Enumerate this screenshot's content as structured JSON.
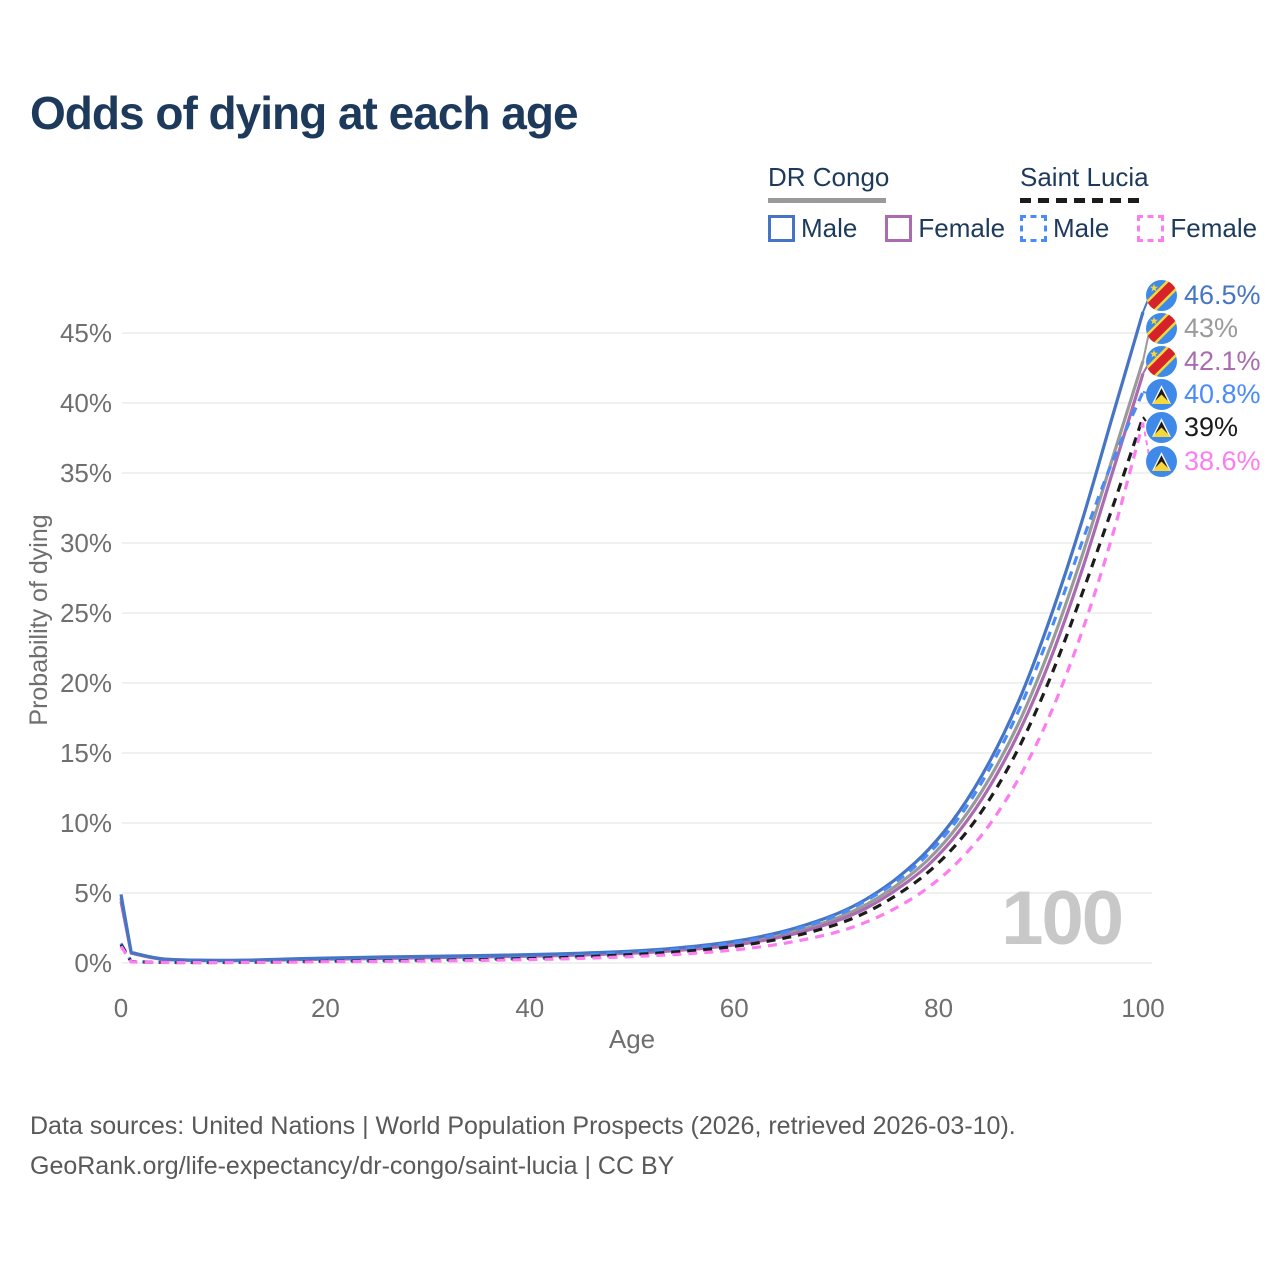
{
  "title": "Odds of dying at each age",
  "watermark_age": "100",
  "legend": {
    "groups": [
      {
        "name": "DR Congo",
        "line_style": "solid",
        "line_color": "#9a9a9a",
        "items": [
          {
            "label": "Male",
            "color": "#4575c4",
            "dashed": false
          },
          {
            "label": "Female",
            "color": "#aa6bb0",
            "dashed": false
          }
        ]
      },
      {
        "name": "Saint Lucia",
        "line_style": "dashed",
        "line_color": "#1c1c1c",
        "items": [
          {
            "label": "Male",
            "color": "#4a8cf7",
            "dashed": true
          },
          {
            "label": "Female",
            "color": "#fc7df2",
            "dashed": true
          }
        ]
      }
    ]
  },
  "chart_data": {
    "type": "line",
    "title": "Odds of dying at each age",
    "xlabel": "Age",
    "ylabel": "Probability of dying",
    "x_tick_labels": [
      "0",
      "20",
      "40",
      "60",
      "80",
      "100"
    ],
    "x_ticks": [
      0,
      20,
      40,
      60,
      80,
      100
    ],
    "y_tick_labels": [
      "0%",
      "5%",
      "10%",
      "15%",
      "20%",
      "25%",
      "30%",
      "35%",
      "40%",
      "45%"
    ],
    "y_ticks_percent": [
      0,
      5,
      10,
      15,
      20,
      25,
      30,
      35,
      40,
      45
    ],
    "xlim": [
      0,
      100
    ],
    "ylim_percent": [
      0,
      48.5
    ],
    "grid": "horizontal",
    "legend_position": "top-right",
    "ages": [
      0,
      1,
      4,
      8,
      12,
      16,
      20,
      25,
      30,
      35,
      40,
      45,
      50,
      54,
      58,
      62,
      66,
      70,
      73,
      76,
      79,
      82,
      85,
      88,
      91,
      94,
      97,
      100
    ],
    "series": [
      {
        "name": "DR Congo Male",
        "country": "DR Congo",
        "flag": "cd",
        "sex": "male",
        "color": "#4575c4",
        "dashed": false,
        "end_label": "46.5%",
        "values_percent": [
          4.9,
          0.75,
          0.3,
          0.2,
          0.2,
          0.28,
          0.35,
          0.42,
          0.48,
          0.53,
          0.6,
          0.7,
          0.85,
          1.05,
          1.35,
          1.8,
          2.5,
          3.5,
          4.6,
          6.1,
          8.1,
          10.8,
          14.4,
          19.0,
          24.8,
          31.5,
          39.0,
          46.5
        ]
      },
      {
        "name": "DR Congo Both sexes",
        "country": "DR Congo",
        "flag": "cd",
        "sex": "both",
        "color": "#9a9a9a",
        "dashed": false,
        "end_label": "43%",
        "values_percent": [
          4.65,
          0.73,
          0.29,
          0.19,
          0.19,
          0.25,
          0.31,
          0.37,
          0.43,
          0.48,
          0.54,
          0.63,
          0.77,
          0.95,
          1.22,
          1.63,
          2.26,
          3.2,
          4.2,
          5.6,
          7.4,
          9.9,
          13.2,
          17.4,
          22.7,
          29.0,
          36.0,
          43.0
        ]
      },
      {
        "name": "DR Congo Female",
        "country": "DR Congo",
        "flag": "cd",
        "sex": "female",
        "color": "#aa6bb0",
        "dashed": false,
        "end_label": "42.1%",
        "values_percent": [
          4.4,
          0.7,
          0.28,
          0.18,
          0.18,
          0.22,
          0.27,
          0.32,
          0.38,
          0.43,
          0.49,
          0.57,
          0.7,
          0.87,
          1.12,
          1.5,
          2.1,
          3.0,
          3.95,
          5.3,
          7.0,
          9.4,
          12.6,
          16.7,
          21.8,
          28.0,
          35.0,
          42.1
        ]
      },
      {
        "name": "Saint Lucia Male",
        "country": "Saint Lucia",
        "flag": "lc",
        "sex": "male",
        "color": "#4a8cf7",
        "dashed": true,
        "end_label": "40.8%",
        "values_percent": [
          1.4,
          0.1,
          0.05,
          0.04,
          0.05,
          0.1,
          0.16,
          0.2,
          0.24,
          0.3,
          0.4,
          0.55,
          0.75,
          0.95,
          1.25,
          1.7,
          2.4,
          3.4,
          4.5,
          5.9,
          7.8,
          10.4,
          13.9,
          18.3,
          23.8,
          30.0,
          35.8,
          40.8
        ]
      },
      {
        "name": "Saint Lucia Both sexes",
        "country": "Saint Lucia",
        "flag": "lc",
        "sex": "both",
        "color": "#1c1c1c",
        "dashed": true,
        "end_label": "39%",
        "values_percent": [
          1.3,
          0.09,
          0.045,
          0.035,
          0.045,
          0.08,
          0.12,
          0.15,
          0.19,
          0.24,
          0.32,
          0.44,
          0.6,
          0.78,
          1.02,
          1.4,
          1.95,
          2.75,
          3.65,
          4.9,
          6.5,
          8.7,
          11.7,
          15.6,
          20.5,
          26.3,
          32.5,
          39.0
        ]
      },
      {
        "name": "Saint Lucia Female",
        "country": "Saint Lucia",
        "flag": "lc",
        "sex": "female",
        "color": "#fc7df2",
        "dashed": true,
        "end_label": "38.6%",
        "values_percent": [
          1.2,
          0.08,
          0.04,
          0.03,
          0.04,
          0.06,
          0.09,
          0.11,
          0.14,
          0.18,
          0.24,
          0.33,
          0.46,
          0.6,
          0.8,
          1.1,
          1.55,
          2.2,
          2.95,
          4.0,
          5.4,
          7.3,
          9.9,
          13.4,
          17.9,
          23.6,
          30.5,
          38.6
        ]
      }
    ]
  },
  "footer": {
    "line1": "Data sources: United Nations | World Population Prospects (2026, retrieved 2026-03-10).",
    "line2": "GeoRank.org/life-expectancy/dr-congo/saint-lucia | CC BY"
  },
  "colors": {
    "title": "#1d3a5c",
    "axis_text": "#6f6f6f",
    "gridline": "#e7e7e7",
    "watermark": "#c8c8c8",
    "footer_text": "#595959"
  }
}
